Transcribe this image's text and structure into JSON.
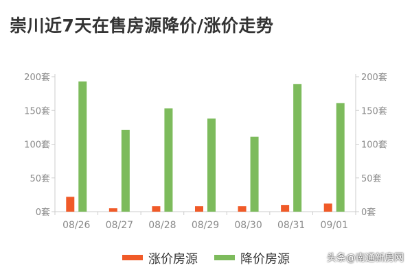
{
  "title": "崇川近7天在售房源降价/涨价走势",
  "watermark": "头条@南通新房网",
  "chart_data": {
    "type": "bar",
    "title": "崇川近7天在售房源降价/涨价走势",
    "categories": [
      "08/26",
      "08/27",
      "08/28",
      "08/29",
      "08/30",
      "08/31",
      "09/01"
    ],
    "series": [
      {
        "name": "涨价房源",
        "color": "#f05a28",
        "values": [
          22,
          5,
          8,
          8,
          8,
          10,
          12
        ]
      },
      {
        "name": "降价房源",
        "color": "#7dbb5c",
        "values": [
          193,
          121,
          153,
          138,
          111,
          189,
          161
        ]
      }
    ],
    "ylim": [
      0,
      200
    ],
    "yticks": [
      "0套",
      "50套",
      "100套",
      "150套",
      "200套"
    ],
    "ytick_values": [
      0,
      50,
      100,
      150,
      200
    ],
    "y_axis_both_sides": true,
    "grid": false,
    "legend_position": "bottom-center",
    "xlabel": "",
    "ylabel": "",
    "colors": {
      "axis": "#cccccc",
      "tick_text": "#8a8a8a"
    }
  }
}
